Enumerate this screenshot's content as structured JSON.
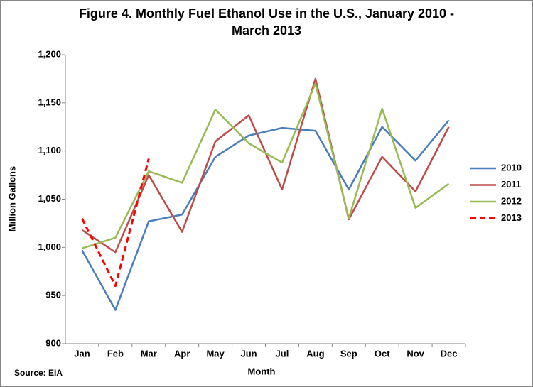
{
  "chart_data": {
    "type": "line",
    "title": [
      "Figure 4. Monthly Fuel Ethanol Use in the U.S., January 2010 -",
      "March 2013"
    ],
    "x_label": "Month",
    "y_label": "Million Gallons",
    "source": "Source: EIA",
    "categories": [
      "Jan",
      "Feb",
      "Mar",
      "Apr",
      "May",
      "Jun",
      "Jul",
      "Aug",
      "Sep",
      "Oct",
      "Nov",
      "Dec"
    ],
    "series": [
      {
        "name": "2010",
        "color": "#4a7ebb",
        "dashed": false,
        "values": [
          997,
          935,
          1027,
          1034,
          1094,
          1116,
          1124,
          1121,
          1060,
          1125,
          1090,
          1132
        ]
      },
      {
        "name": "2011",
        "color": "#be4b48",
        "dashed": false,
        "values": [
          1018,
          995,
          1075,
          1016,
          1110,
          1137,
          1060,
          1175,
          1029,
          1094,
          1058,
          1125
        ]
      },
      {
        "name": "2012",
        "color": "#98b954",
        "dashed": false,
        "values": [
          999,
          1010,
          1079,
          1067,
          1143,
          1108,
          1088,
          1170,
          1030,
          1144,
          1041,
          1066
        ]
      },
      {
        "name": "2013",
        "color": "#ff0000",
        "dashed": true,
        "values": [
          1030,
          960,
          1092,
          null,
          null,
          null,
          null,
          null,
          null,
          null,
          null,
          null
        ]
      }
    ],
    "ylim": [
      900,
      1200
    ],
    "yticks": [
      900,
      950,
      {
        "value": 1000,
        "label": "1,000"
      },
      {
        "value": 1050,
        "label": "1,050"
      },
      {
        "value": 1100,
        "label": "1,100"
      },
      {
        "value": 1150,
        "label": "1,150"
      },
      {
        "value": 1200,
        "label": "1,200"
      }
    ],
    "grid": false,
    "legend": "right"
  }
}
